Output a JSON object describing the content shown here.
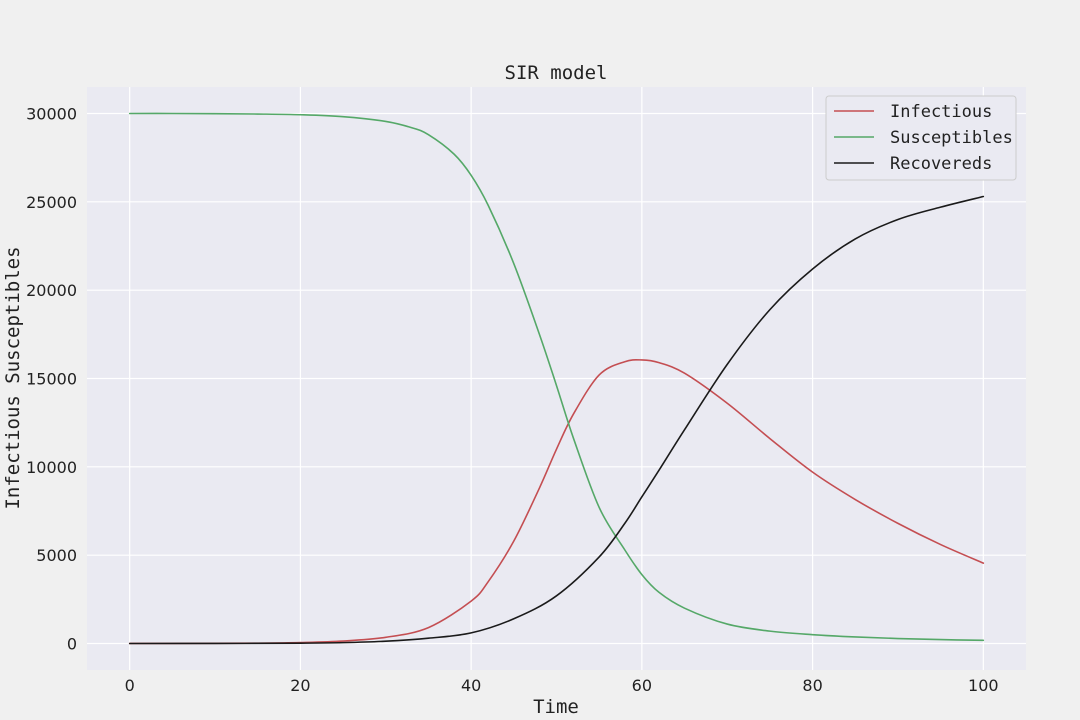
{
  "chart_data": {
    "type": "line",
    "title": "SIR model",
    "xlabel": "Time",
    "ylabel": "Infectious Susceptibles",
    "xlim": [
      -5,
      105
    ],
    "ylim": [
      -1500,
      31500
    ],
    "xticks": [
      0,
      20,
      40,
      60,
      80,
      100
    ],
    "yticks": [
      0,
      5000,
      10000,
      15000,
      20000,
      25000,
      30000
    ],
    "xtick_labels": [
      "0",
      "20",
      "40",
      "60",
      "80",
      "100"
    ],
    "ytick_labels": [
      "0",
      "5000",
      "10000",
      "15000",
      "20000",
      "25000",
      "30000"
    ],
    "grid": true,
    "legend_position": "top-right",
    "background": "#eaeaf2",
    "series": [
      {
        "name": "Infectious",
        "color": "#c44e52",
        "x": [
          0,
          5,
          10,
          15,
          20,
          25,
          30,
          35,
          40,
          42,
          45,
          48,
          50,
          52,
          55,
          58,
          60,
          62,
          65,
          70,
          75,
          80,
          85,
          90,
          95,
          100
        ],
        "y": [
          1,
          3,
          8,
          20,
          55,
          140,
          350,
          900,
          2400,
          3500,
          5800,
          8800,
          11000,
          13000,
          15200,
          15950,
          16050,
          15900,
          15300,
          13600,
          11600,
          9700,
          8150,
          6800,
          5600,
          4550
        ]
      },
      {
        "name": "Susceptibles",
        "color": "#55a868",
        "x": [
          0,
          5,
          10,
          15,
          20,
          25,
          30,
          33,
          35,
          38,
          40,
          42,
          45,
          48,
          50,
          52,
          55,
          58,
          60,
          62,
          65,
          70,
          75,
          80,
          85,
          90,
          95,
          100
        ],
        "y": [
          30000,
          30000,
          29990,
          29970,
          29930,
          29820,
          29550,
          29200,
          28800,
          27700,
          26500,
          24800,
          21500,
          17500,
          14600,
          11600,
          7700,
          5300,
          3900,
          2900,
          2000,
          1100,
          700,
          500,
          370,
          280,
          220,
          180
        ]
      },
      {
        "name": "Recovereds",
        "color": "#1a1a1a",
        "x": [
          0,
          10,
          20,
          25,
          30,
          35,
          40,
          45,
          50,
          55,
          58,
          60,
          62,
          65,
          70,
          75,
          80,
          85,
          90,
          95,
          100
        ],
        "y": [
          0,
          3,
          20,
          50,
          130,
          300,
          600,
          1400,
          2700,
          4900,
          6800,
          8300,
          9800,
          12100,
          15800,
          18900,
          21200,
          22900,
          24000,
          24700,
          25300
        ]
      }
    ]
  }
}
